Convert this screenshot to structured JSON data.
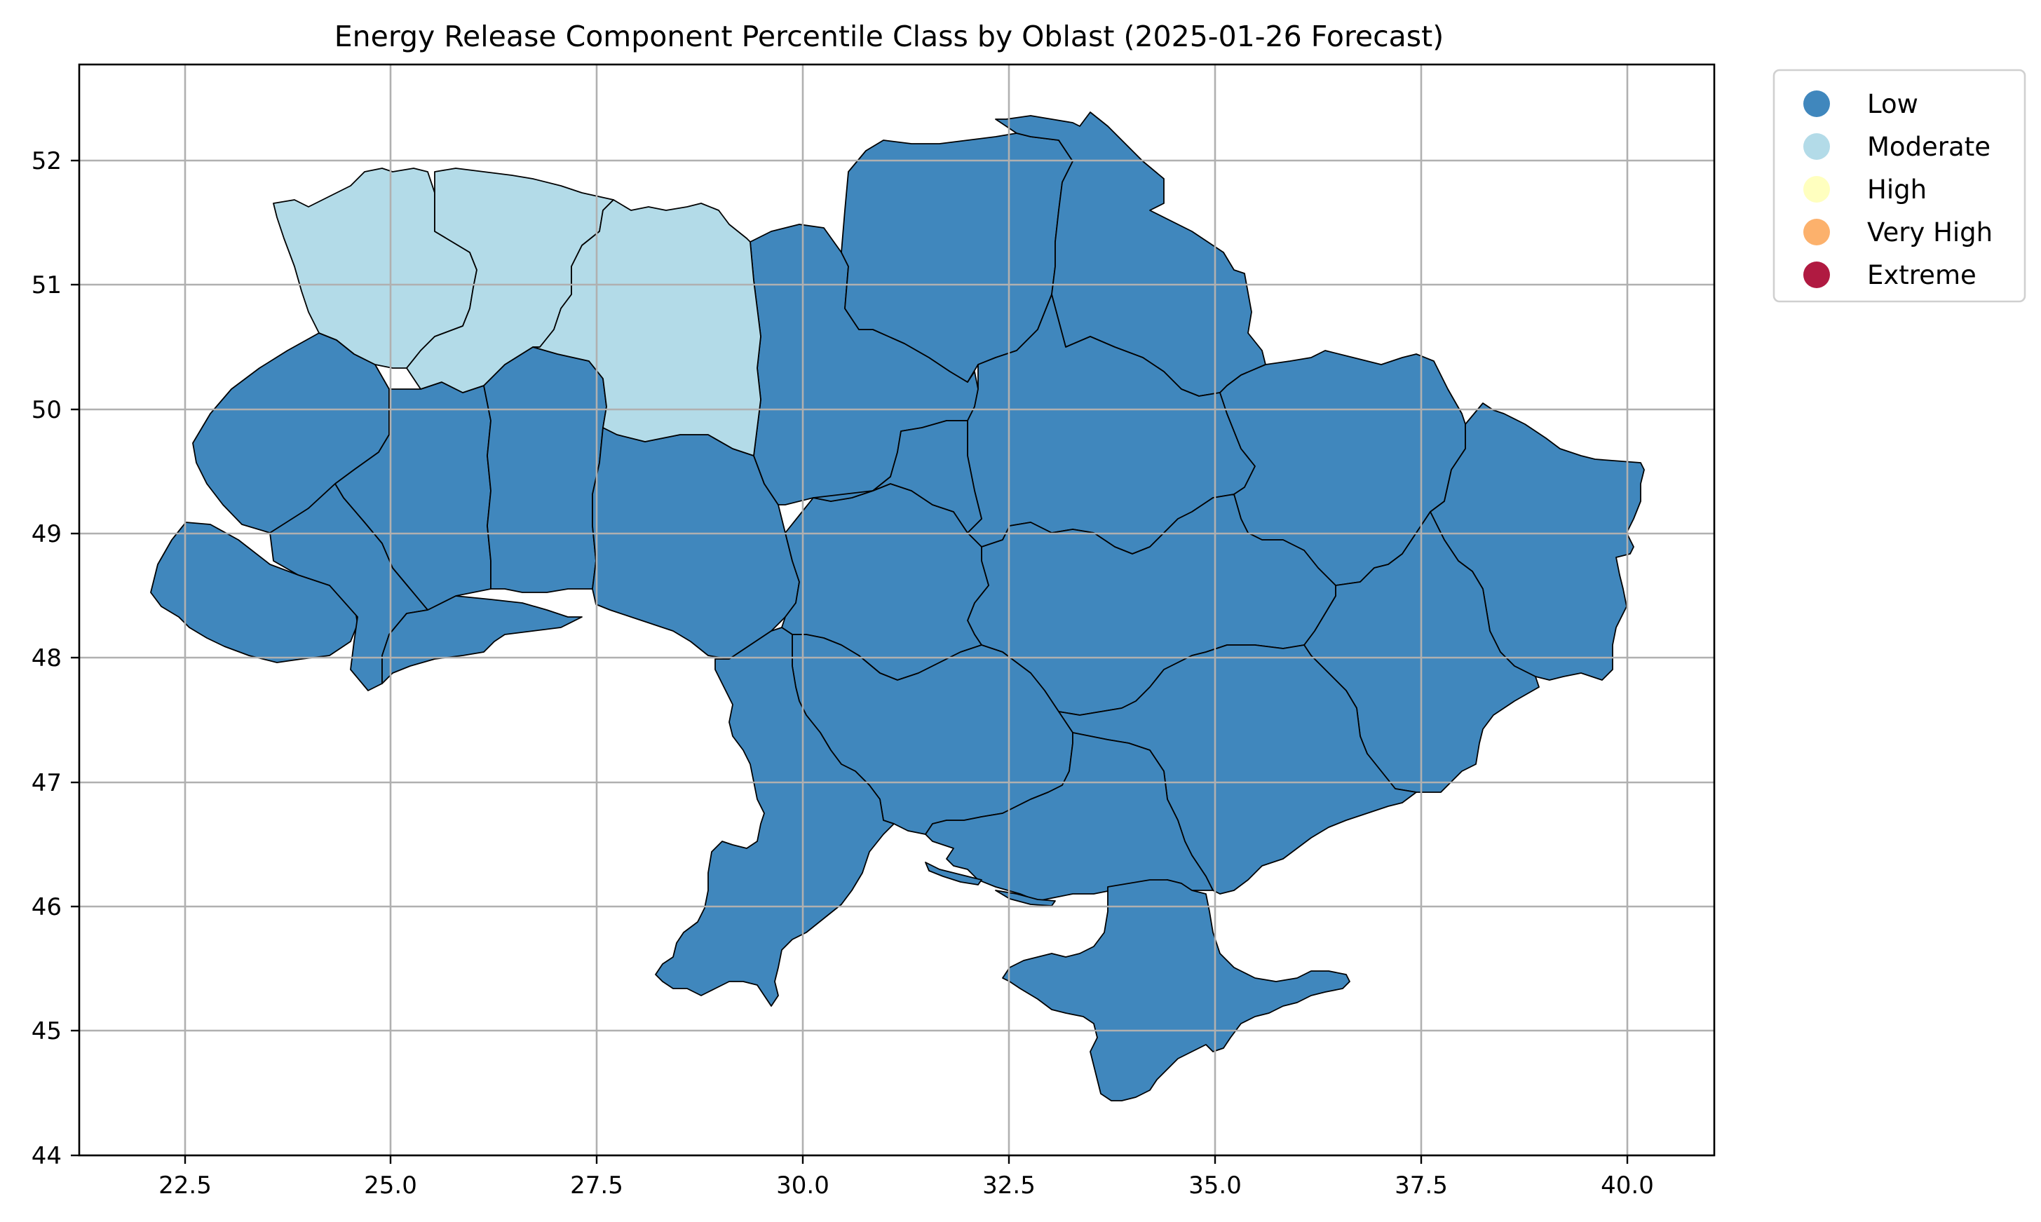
{
  "title": "Energy Release Component Percentile Class by Oblast (2025-01-26 Forecast)",
  "axes": {
    "x_ticks": [
      "22.5",
      "25.0",
      "27.5",
      "30.0",
      "32.5",
      "35.0",
      "37.5",
      "40.0"
    ],
    "y_ticks": [
      "52",
      "51",
      "50",
      "49",
      "48",
      "47",
      "46",
      "45",
      "44"
    ],
    "grid": true
  },
  "legend": {
    "placement": "outside upper right",
    "items": [
      {
        "label": "Low",
        "color": "#4087bd"
      },
      {
        "label": "Moderate",
        "color": "#b3dbe8"
      },
      {
        "label": "High",
        "color": "#ffffbf"
      },
      {
        "label": "Very High",
        "color": "#fcb16c"
      },
      {
        "label": "Extreme",
        "color": "#b01a41"
      }
    ]
  },
  "map": {
    "region": "Ukraine",
    "classes": [
      "Low",
      "Moderate"
    ],
    "moderate_region": "north-west (Volyn, Rivne, Zhytomyr oblasts)",
    "other_oblasts_class": "Low"
  }
}
